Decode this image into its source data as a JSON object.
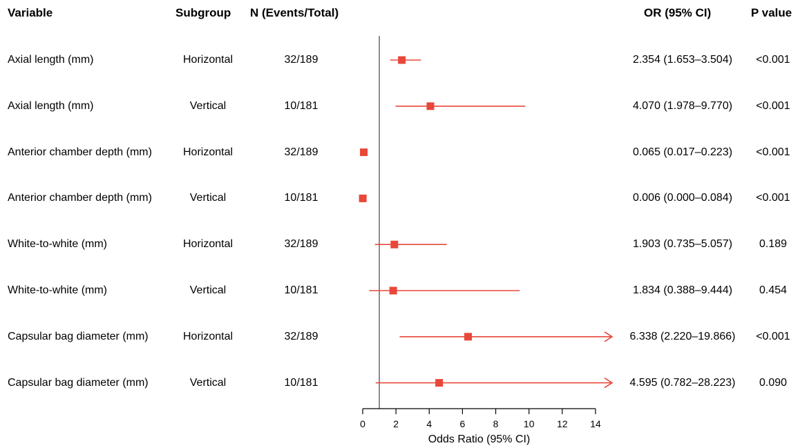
{
  "headers": {
    "variable": "Variable",
    "subgroup": "Subgroup",
    "n": "N (Events/Total)",
    "or": "OR (95% CI)",
    "p": "P value"
  },
  "rows": [
    {
      "variable": "Axial length (mm)",
      "subgroup": "Horizontal",
      "n": "32/189",
      "or_text": "2.354 (1.653–3.504)",
      "p": "<0.001"
    },
    {
      "variable": "Axial length (mm)",
      "subgroup": "Vertical",
      "n": "10/181",
      "or_text": "4.070 (1.978–9.770)",
      "p": "<0.001"
    },
    {
      "variable": "Anterior chamber depth (mm)",
      "subgroup": "Horizontal",
      "n": "32/189",
      "or_text": "0.065 (0.017–0.223)",
      "p": "<0.001"
    },
    {
      "variable": "Anterior chamber depth (mm)",
      "subgroup": "Vertical",
      "n": "10/181",
      "or_text": "0.006 (0.000–0.084)",
      "p": "<0.001"
    },
    {
      "variable": "White-to-white (mm)",
      "subgroup": "Horizontal",
      "n": "32/189",
      "or_text": "1.903 (0.735–5.057)",
      "p": "0.189"
    },
    {
      "variable": "White-to-white (mm)",
      "subgroup": "Vertical",
      "n": "10/181",
      "or_text": "1.834 (0.388–9.444)",
      "p": "0.454"
    },
    {
      "variable": "Capsular bag diameter (mm)",
      "subgroup": "Horizontal",
      "n": "32/189",
      "or_text": "6.338 (2.220–19.866)",
      "p": "<0.001"
    },
    {
      "variable": "Capsular bag diameter (mm)",
      "subgroup": "Vertical",
      "n": "10/181",
      "or_text": "4.595 (0.782–28.223)",
      "p": "0.090"
    }
  ],
  "chart_data": {
    "type": "scatter",
    "subtype": "forest",
    "xlabel": "Odds Ratio (95% CI)",
    "xlim": [
      0,
      14
    ],
    "xticks": [
      0,
      2,
      4,
      6,
      8,
      10,
      12,
      14
    ],
    "reference_line": 1,
    "marker_color": "#e8473a",
    "points": [
      {
        "or": 2.354,
        "lower": 1.653,
        "upper": 3.504
      },
      {
        "or": 4.07,
        "lower": 1.978,
        "upper": 9.77
      },
      {
        "or": 0.065,
        "lower": 0.017,
        "upper": 0.223
      },
      {
        "or": 0.006,
        "lower": 0.0,
        "upper": 0.084
      },
      {
        "or": 1.903,
        "lower": 0.735,
        "upper": 5.057
      },
      {
        "or": 1.834,
        "lower": 0.388,
        "upper": 9.444
      },
      {
        "or": 6.338,
        "lower": 2.22,
        "upper": 19.866
      },
      {
        "or": 4.595,
        "lower": 0.782,
        "upper": 28.223
      }
    ]
  }
}
